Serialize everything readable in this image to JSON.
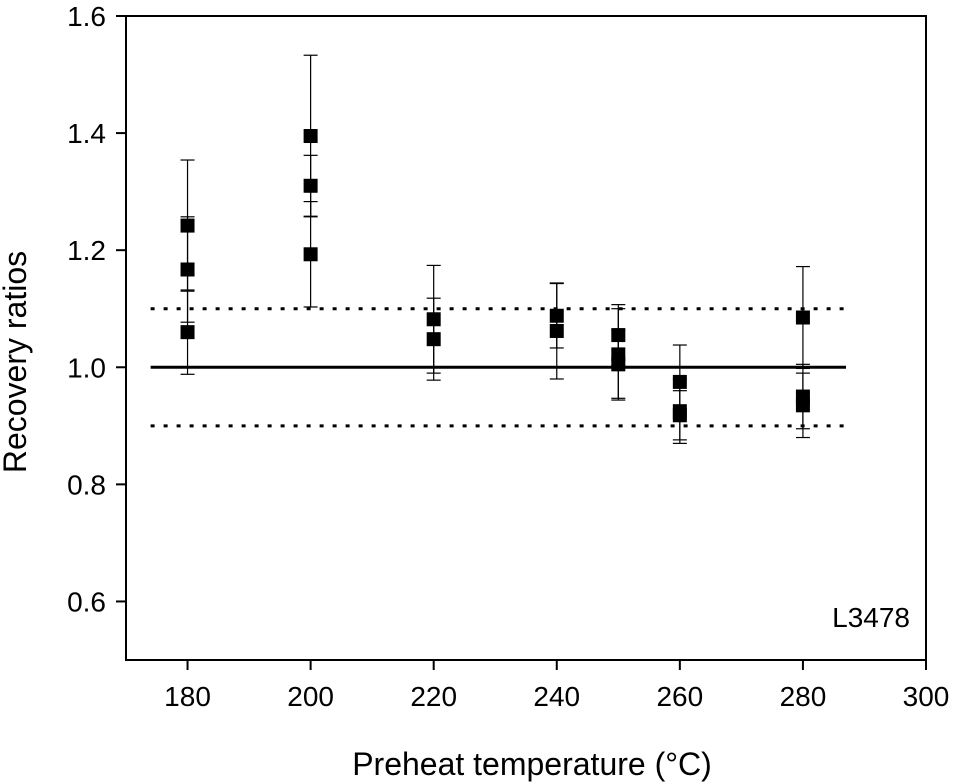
{
  "chart_data": {
    "type": "scatter",
    "title": "",
    "xlabel": "Preheat temperature (°C)",
    "ylabel": "Recovery ratios",
    "xlim": [
      170,
      300
    ],
    "ylim": [
      0.5,
      1.6
    ],
    "xticks": [
      180,
      200,
      220,
      240,
      260,
      280,
      300
    ],
    "yticks": [
      0.6,
      0.8,
      1.0,
      1.2,
      1.4,
      1.6
    ],
    "xtick_labels": [
      "180",
      "200",
      "220",
      "240",
      "260",
      "280",
      "300"
    ],
    "ytick_labels": [
      "0.6",
      "0.8",
      "1.0",
      "1.2",
      "1.4",
      "1.6"
    ],
    "annotation": "L3478",
    "grid": false,
    "marker": "square",
    "series": [
      {
        "points": [
          {
            "x": 180,
            "y": 1.242,
            "err": 0.112
          },
          {
            "x": 180,
            "y": 1.167,
            "err": 0.09
          },
          {
            "x": 180,
            "y": 1.06,
            "err": 0.072
          },
          {
            "x": 200,
            "y": 1.395,
            "err": 0.138
          },
          {
            "x": 200,
            "y": 1.31,
            "err": 0.052
          },
          {
            "x": 200,
            "y": 1.193,
            "err": 0.09
          },
          {
            "x": 220,
            "y": 1.082,
            "err": 0.092
          },
          {
            "x": 220,
            "y": 1.048,
            "err": 0.07
          },
          {
            "x": 240,
            "y": 1.088,
            "err": 0.055
          },
          {
            "x": 240,
            "y": 1.062,
            "err": 0.082
          },
          {
            "x": 250,
            "y": 1.055,
            "err": 0.052
          },
          {
            "x": 250,
            "y": 1.022,
            "err": 0.078
          },
          {
            "x": 250,
            "y": 1.005,
            "err": 0.058
          },
          {
            "x": 260,
            "y": 0.975,
            "err": 0.063
          },
          {
            "x": 260,
            "y": 0.925,
            "err": 0.055
          },
          {
            "x": 260,
            "y": 0.918,
            "err": 0.042
          },
          {
            "x": 280,
            "y": 1.085,
            "err": 0.087
          },
          {
            "x": 280,
            "y": 0.95,
            "err": 0.055
          },
          {
            "x": 280,
            "y": 0.935,
            "err": 0.055
          }
        ]
      }
    ],
    "reference_lines": [
      {
        "y": 1.0,
        "style": "solid",
        "x_range": [
          174,
          287
        ]
      },
      {
        "y": 1.1,
        "style": "dotted",
        "x_range": [
          174,
          287
        ]
      },
      {
        "y": 0.9,
        "style": "dotted",
        "x_range": [
          174,
          287
        ]
      }
    ]
  }
}
